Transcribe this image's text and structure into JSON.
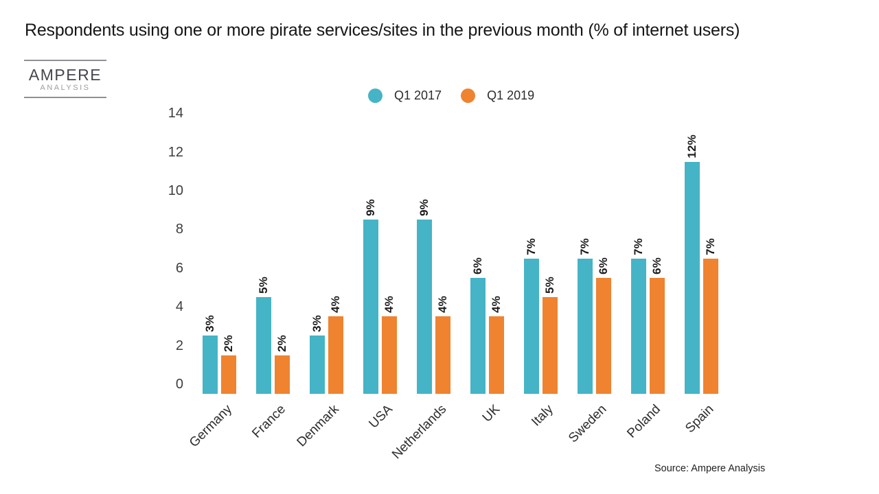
{
  "title": "Respondents using one or more pirate services/sites in the previous month (% of internet users)",
  "logo": {
    "name": "AMPERE",
    "subtitle": "ANALYSIS"
  },
  "legend": [
    {
      "label": "Q1 2017",
      "color": "#45B4C6"
    },
    {
      "label": "Q1 2019",
      "color": "#EF8330"
    }
  ],
  "source": "Source: Ampere Analysis",
  "colors": {
    "q1_2017": "#45B4C6",
    "q1_2019": "#EF8330",
    "text": "#1a1a1a",
    "background": "#ffffff"
  },
  "chart_data": {
    "type": "bar",
    "title": "Respondents using one or more pirate services/sites in the previous month (% of internet users)",
    "categories": [
      "Germany",
      "France",
      "Denmark",
      "USA",
      "Netherlands",
      "UK",
      "Italy",
      "Sweden",
      "Poland",
      "Spain"
    ],
    "series": [
      {
        "name": "Q1 2017",
        "color": "#45B4C6",
        "values": [
          3,
          5,
          3,
          9,
          9,
          6,
          7,
          7,
          7,
          12
        ],
        "labels": [
          "3%",
          "5%",
          "3%",
          "9%",
          "9%",
          "6%",
          "7%",
          "7%",
          "7%",
          "12%"
        ]
      },
      {
        "name": "Q1 2019",
        "color": "#EF8330",
        "values": [
          2,
          2,
          4,
          4,
          4,
          4,
          5,
          6,
          6,
          7
        ],
        "labels": [
          "2%",
          "2%",
          "4%",
          "4%",
          "4%",
          "4%",
          "5%",
          "6%",
          "6%",
          "7%"
        ]
      }
    ],
    "xlabel": "",
    "ylabel": "",
    "yticks": [
      0,
      2,
      4,
      6,
      8,
      10,
      12,
      14
    ],
    "ylim": [
      0,
      14
    ],
    "grid": false,
    "legend_position": "top-center",
    "value_label_rotation": 90,
    "category_label_rotation": 45,
    "unit_suffix": "%"
  }
}
